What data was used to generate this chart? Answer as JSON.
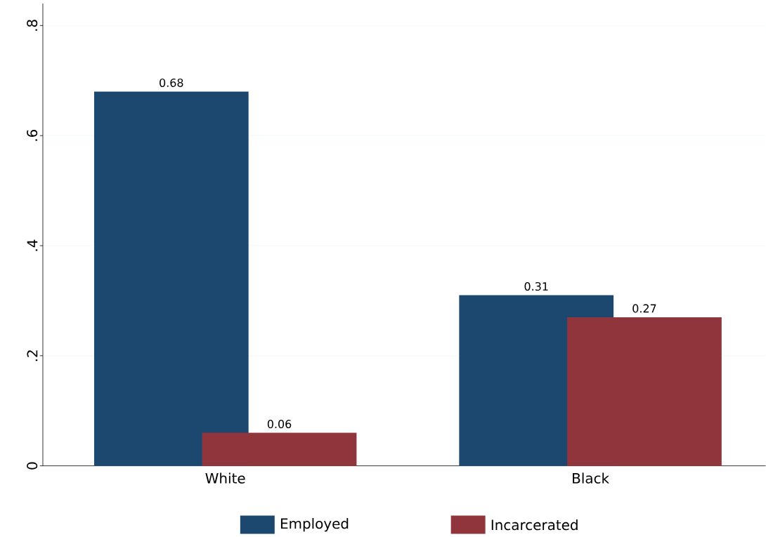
{
  "chart_data": {
    "type": "bar",
    "categories": [
      "White",
      "Black"
    ],
    "series": [
      {
        "name": "Employed",
        "color": "#1c476f",
        "values": [
          0.68,
          0.31
        ]
      },
      {
        "name": "Incarcerated",
        "color": "#90353c",
        "values": [
          0.06,
          0.27
        ]
      }
    ],
    "ylim": [
      0,
      0.84
    ],
    "yticks": [
      0,
      {
        "value": 0.2,
        "label": ".2"
      },
      {
        "value": 0.4,
        "label": ".4"
      },
      {
        "value": 0.6,
        "label": ".6"
      },
      {
        "value": 0.8,
        "label": ".8"
      }
    ],
    "grid": "y",
    "legend": "bottom",
    "data_labels": true
  }
}
